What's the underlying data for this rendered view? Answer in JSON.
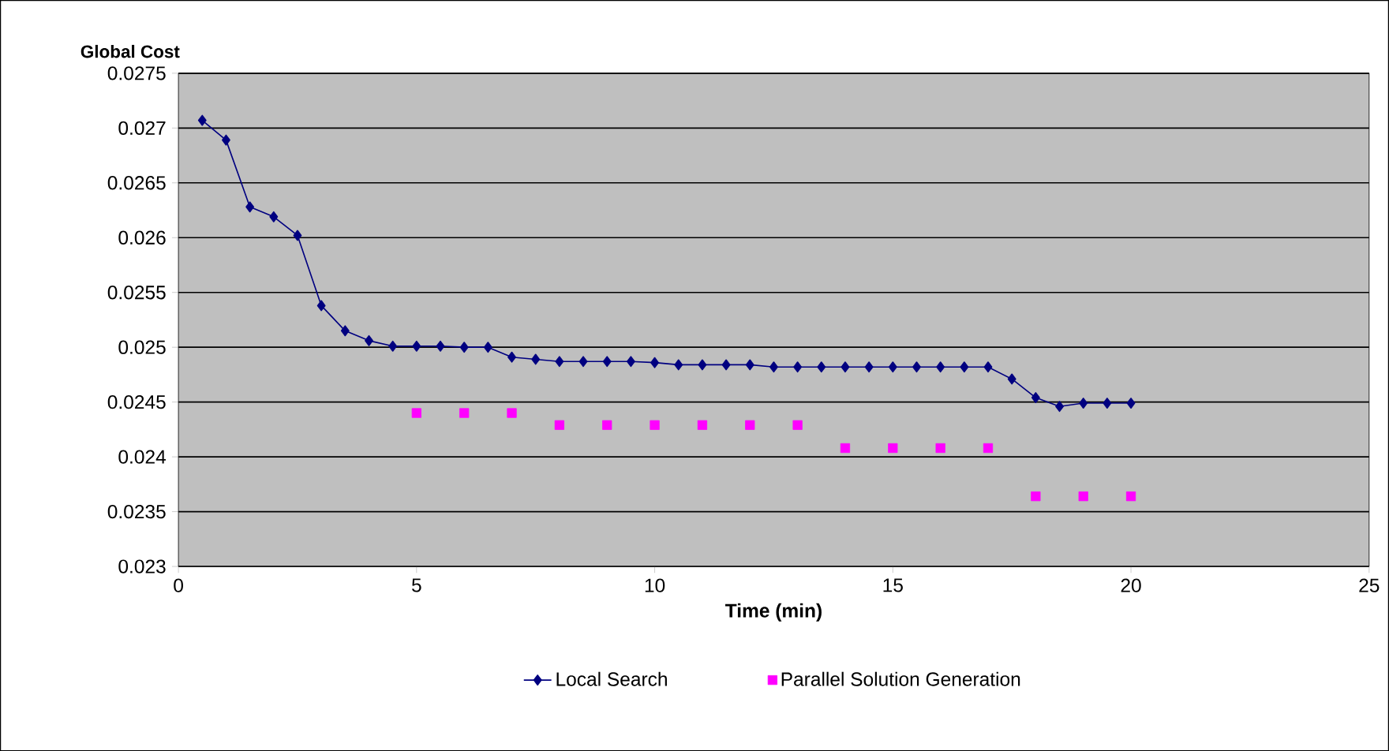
{
  "chart_data": {
    "type": "line",
    "ylabel": "Global Cost",
    "xlabel": "Time (min)",
    "xlim": [
      0,
      25
    ],
    "xticks": [
      0,
      5,
      10,
      15,
      20,
      25
    ],
    "ylim": [
      0.023,
      0.0275
    ],
    "yticks": [
      0.023,
      0.0235,
      0.024,
      0.0245,
      0.025,
      0.0255,
      0.026,
      0.0265,
      0.027,
      0.0275
    ],
    "grid": "y",
    "legend": "bottom",
    "series": [
      {
        "name": "Local Search",
        "color": "#000080",
        "marker": "diamond",
        "x": [
          0.5,
          1,
          1.5,
          2,
          2.5,
          3,
          3.5,
          4,
          4.5,
          5,
          5.5,
          6,
          6.5,
          7,
          7.5,
          8,
          8.5,
          9,
          9.5,
          10,
          10.5,
          11,
          11.5,
          12,
          12.5,
          13,
          13.5,
          14,
          14.5,
          15,
          15.5,
          16,
          16.5,
          17,
          17.5,
          18,
          18.5,
          19,
          19.5,
          20
        ],
        "values": [
          0.02707,
          0.02689,
          0.02628,
          0.02619,
          0.02602,
          0.02538,
          0.02515,
          0.02506,
          0.02501,
          0.02501,
          0.02501,
          0.025,
          0.025,
          0.02491,
          0.02489,
          0.02487,
          0.02487,
          0.02487,
          0.02487,
          0.02486,
          0.02484,
          0.02484,
          0.02484,
          0.02484,
          0.02482,
          0.02482,
          0.02482,
          0.02482,
          0.02482,
          0.02482,
          0.02482,
          0.02482,
          0.02482,
          0.02482,
          0.02471,
          0.02454,
          0.02446,
          0.02449,
          0.02449,
          0.02449
        ]
      },
      {
        "name": "Parallel Solution Generation",
        "type": "scatter",
        "color": "#ff00ff",
        "marker": "square",
        "x": [
          5,
          6,
          7,
          8,
          9,
          10,
          11,
          12,
          13,
          14,
          15,
          16,
          17,
          18,
          19,
          20
        ],
        "values": [
          0.0244,
          0.0244,
          0.0244,
          0.02429,
          0.02429,
          0.02429,
          0.02429,
          0.02429,
          0.02429,
          0.02408,
          0.02408,
          0.02408,
          0.02408,
          0.02364,
          0.02364,
          0.02364
        ]
      }
    ]
  }
}
